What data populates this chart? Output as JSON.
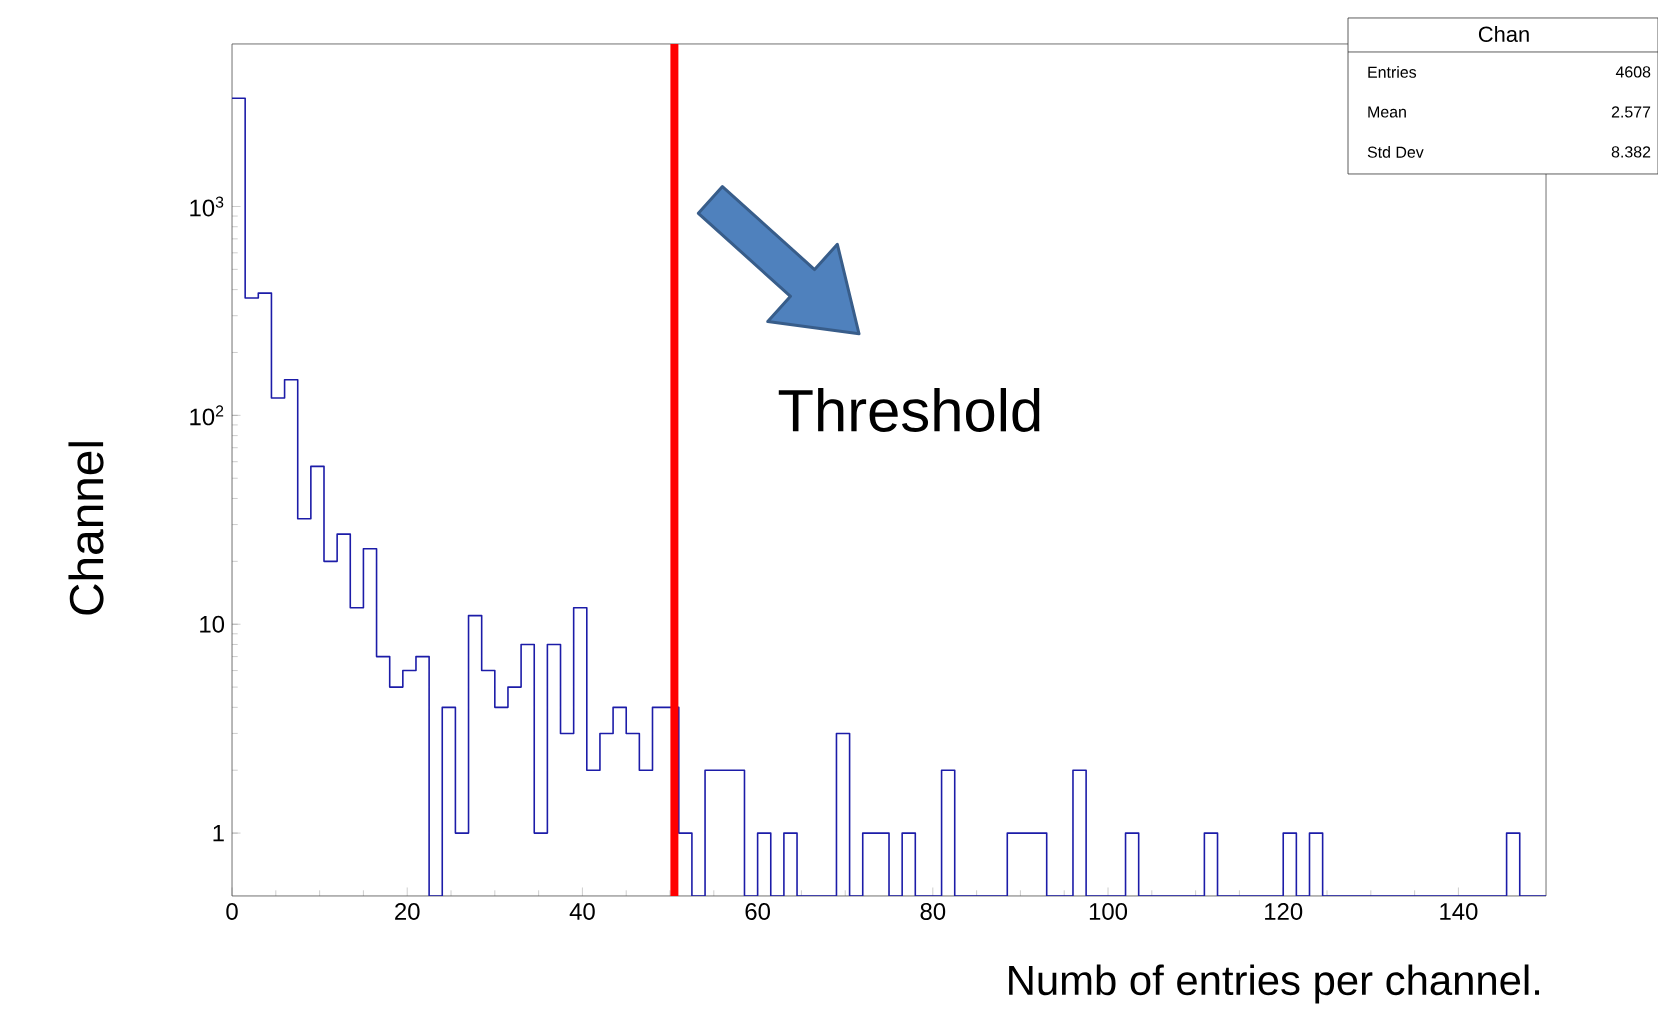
{
  "chart_data": {
    "type": "histogram",
    "xlabel": "Numb of entries per channel.",
    "ylabel": "Channel",
    "bins": [
      0,
      1.5,
      3,
      4.5,
      6,
      7.5,
      9,
      10.5,
      12,
      13.5,
      15,
      16.5,
      18,
      19.5,
      21,
      22.5,
      24,
      25.5,
      27,
      28.5,
      30,
      31.5,
      33,
      34.5,
      36,
      37.5,
      39,
      40.5,
      42,
      43.5,
      45,
      46.5,
      48,
      49.5,
      51,
      52.5,
      54,
      55.5,
      57,
      58.5,
      60,
      61.5,
      63,
      64.5,
      66,
      67.5,
      69,
      70.5,
      72,
      73.5,
      75,
      76.5,
      78,
      79.5,
      81,
      82.5,
      84,
      85.5,
      87,
      88.5,
      90,
      91.5,
      93,
      94.5,
      96,
      97.5,
      99,
      100.5,
      102,
      103.5,
      105,
      106.5,
      108,
      109.5,
      111,
      112.5,
      114,
      115.5,
      117,
      118.5,
      120,
      121.5,
      123,
      124.5,
      126,
      127.5,
      129,
      130.5,
      132,
      133.5,
      135,
      136.5,
      138,
      139.5,
      141,
      142.5,
      144,
      145.5,
      147,
      148.5,
      150
    ],
    "values": [
      3300,
      365,
      385,
      121,
      148,
      32,
      57,
      20,
      27,
      12,
      23,
      7,
      5,
      6,
      7,
      null,
      4,
      1,
      11,
      6,
      4,
      5,
      8,
      1,
      8,
      3,
      12,
      2,
      3,
      4,
      3,
      2,
      4,
      4,
      1,
      null,
      2,
      2,
      2,
      null,
      1,
      null,
      1,
      null,
      null,
      null,
      3,
      null,
      1,
      1,
      null,
      1,
      null,
      null,
      2,
      null,
      null,
      null,
      null,
      1,
      1,
      1,
      null,
      null,
      2,
      null,
      null,
      null,
      1,
      null,
      null,
      null,
      null,
      null,
      1,
      null,
      null,
      null,
      null,
      null,
      1,
      null,
      1,
      null,
      null,
      null,
      null,
      null,
      null,
      null,
      null,
      null,
      null,
      null,
      null,
      null,
      null,
      1,
      null,
      null
    ],
    "color": "#1c1ca8",
    "xlim": [
      0,
      150
    ],
    "ylim": [
      0.5,
      6000
    ],
    "xticks": [
      0,
      20,
      40,
      60,
      80,
      100,
      120,
      140
    ],
    "yticks": [
      1,
      10,
      {
        "value": 100,
        "label": "10$^{2}$"
      },
      {
        "value": 1000,
        "label": "10$^{3}$"
      }
    ],
    "log": "y",
    "grid": false,
    "ref_lines": [
      {
        "axis": "x",
        "value": 50.5,
        "label": "Threshold",
        "color": "#ff0000"
      }
    ],
    "annotations": [
      "Chan",
      "Entries",
      "4608",
      "Mean",
      "2.577",
      "Std Dev",
      "8.382"
    ]
  }
}
